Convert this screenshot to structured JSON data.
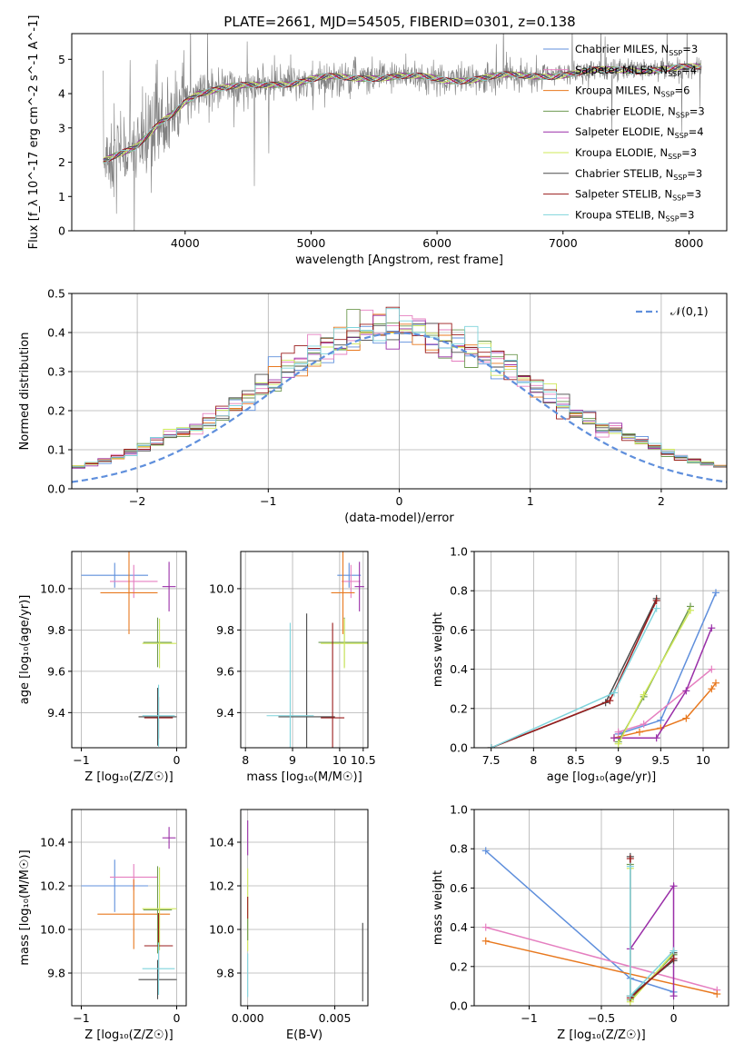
{
  "figure_title": "PLATE=2661, MJD=54505, FIBERID=0301, z=0.138",
  "colors": {
    "Chabrier MILES": "#5f8fdc",
    "Salpeter MILES": "#e57fc0",
    "Kroupa MILES": "#e8781e",
    "Chabrier ELODIE": "#6e9a50",
    "Salpeter ELODIE": "#9a2fa8",
    "Kroupa ELODIE": "#cfe85a",
    "Chabrier STELIB": "#4a4a4a",
    "Salpeter STELIB": "#9a1b1b",
    "Kroupa STELIB": "#7fd4dc",
    "normal": "#5f8fdc",
    "data": "#808080"
  },
  "chart_data": [
    {
      "id": "spectrum",
      "type": "line",
      "title": "PLATE=2661, MJD=54505, FIBERID=0301, z=0.138",
      "xlabel": "wavelength [Angstrom, rest frame]",
      "ylabel": "Flux [f_λ 10^-17 erg cm^-2 s^-1 A^-1]",
      "xlim": [
        3100,
        8300
      ],
      "ylim": [
        0,
        5.75
      ],
      "xticks": [
        4000,
        5000,
        6000,
        7000,
        8000
      ],
      "yticks": [
        0,
        1,
        2,
        3,
        4,
        5
      ],
      "grid": false,
      "legend_position": "right",
      "legend": [
        {
          "name": "Chabrier MILES",
          "nssp": "3"
        },
        {
          "name": "Salpeter MILES",
          "nssp": "4"
        },
        {
          "name": "Kroupa MILES",
          "nssp": "6"
        },
        {
          "name": "Chabrier ELODIE",
          "nssp": "3"
        },
        {
          "name": "Salpeter ELODIE",
          "nssp": "4"
        },
        {
          "name": "Kroupa ELODIE",
          "nssp": "3"
        },
        {
          "name": "Chabrier STELIB",
          "nssp": "3"
        },
        {
          "name": "Salpeter STELIB",
          "nssp": "3"
        },
        {
          "name": "Kroupa STELIB",
          "nssp": "3"
        }
      ],
      "continuum": {
        "x": [
          3350,
          3450,
          3600,
          3700,
          3800,
          3900,
          4000,
          4100,
          4300,
          4500,
          4700,
          4900,
          5100,
          5300,
          5500,
          5700,
          5900,
          6100,
          6300,
          6500,
          6700,
          6900,
          7100,
          7300,
          7500,
          7700,
          7900,
          8100
        ],
        "y": [
          2.1,
          2.25,
          2.4,
          2.7,
          3.1,
          3.4,
          3.8,
          4.05,
          4.15,
          4.2,
          4.3,
          4.35,
          4.45,
          4.45,
          4.5,
          4.5,
          4.45,
          4.4,
          4.45,
          4.5,
          4.5,
          4.55,
          4.6,
          4.65,
          4.7,
          4.72,
          4.72,
          4.75
        ]
      }
    },
    {
      "id": "residuals",
      "type": "line",
      "xlabel": "(data-model)/error",
      "ylabel": "Normed distribution",
      "xlim": [
        -2.5,
        2.5
      ],
      "ylim": [
        0,
        0.5
      ],
      "xticks": [
        -2,
        -1,
        0,
        1,
        2
      ],
      "yticks": [
        0.0,
        0.1,
        0.2,
        0.3,
        0.4,
        0.5
      ],
      "grid": true,
      "legend_position": "top-right",
      "legend": "𝒩(0,1)",
      "bin_width": 0.1
    },
    {
      "id": "age_vs_Z",
      "type": "scatter",
      "xlabel": "Z [log₁₀(Z/Z☉)]",
      "ylabel": "age [log₁₀(age/yr)]",
      "xlim": [
        -1.1,
        0.1
      ],
      "ylim": [
        9.23,
        10.18
      ],
      "xticks": [
        -1,
        0
      ],
      "yticks": [
        9.4,
        9.6,
        9.8,
        10.0
      ],
      "grid": true,
      "points": [
        {
          "model": "Chabrier MILES",
          "x": -0.65,
          "xerr": 0.35,
          "y": 10.065,
          "yerr": 0.06
        },
        {
          "model": "Salpeter MILES",
          "x": -0.45,
          "xerr": 0.25,
          "y": 10.035,
          "yerr": 0.08
        },
        {
          "model": "Kroupa MILES",
          "x": -0.5,
          "xerr": 0.3,
          "y": 9.98,
          "yerr": 0.2
        },
        {
          "model": "Salpeter ELODIE",
          "x": -0.08,
          "xerr": 0.07,
          "y": 10.01,
          "yerr": 0.12
        },
        {
          "model": "Chabrier ELODIE",
          "x": -0.2,
          "xerr": 0.15,
          "y": 9.74,
          "yerr": 0.12
        },
        {
          "model": "Kroupa ELODIE",
          "x": -0.18,
          "xerr": 0.18,
          "y": 9.735,
          "yerr": 0.12
        },
        {
          "model": "Chabrier STELIB",
          "x": -0.2,
          "xerr": 0.2,
          "y": 9.38,
          "yerr": 0.14
        },
        {
          "model": "Salpeter STELIB",
          "x": -0.19,
          "xerr": 0.15,
          "y": 9.375,
          "yerr": 0.1
        },
        {
          "model": "Kroupa STELIB",
          "x": -0.19,
          "xerr": 0.17,
          "y": 9.385,
          "yerr": 0.15
        }
      ]
    },
    {
      "id": "age_vs_mass",
      "type": "scatter",
      "xlabel": "mass [log₁₀(M/M☉)]",
      "ylabel": "",
      "xlim": [
        7.9,
        10.6
      ],
      "ylim": [
        9.23,
        10.18
      ],
      "xticks": [
        8.0,
        9.0,
        10.0,
        10.5
      ],
      "xticklabels": [
        "8",
        "9",
        "10",
        "10.5"
      ],
      "yticks": [
        9.4,
        9.6,
        9.8,
        10.0
      ],
      "grid": true,
      "points": [
        {
          "model": "Chabrier MILES",
          "x": 10.2,
          "xerr": 0.25,
          "y": 10.065,
          "yerr": 0.06
        },
        {
          "model": "Salpeter MILES",
          "x": 10.24,
          "xerr": 0.2,
          "y": 10.035,
          "yerr": 0.08
        },
        {
          "model": "Kroupa MILES",
          "x": 10.07,
          "xerr": 0.25,
          "y": 9.98,
          "yerr": 0.2
        },
        {
          "model": "Salpeter ELODIE",
          "x": 10.42,
          "xerr": 0.1,
          "y": 10.01,
          "yerr": 0.12
        },
        {
          "model": "Chabrier ELODIE",
          "x": 10.1,
          "xerr": 0.55,
          "y": 9.74,
          "yerr": 0.12
        },
        {
          "model": "Kroupa ELODIE",
          "x": 10.1,
          "xerr": 0.5,
          "y": 9.735,
          "yerr": 0.12
        },
        {
          "model": "Chabrier STELIB",
          "x": 9.3,
          "xerr": 0.6,
          "y": 9.38,
          "yerr": 0.5
        },
        {
          "model": "Salpeter STELIB",
          "x": 9.85,
          "xerr": 0.25,
          "y": 9.375,
          "yerr": 0.46
        },
        {
          "model": "Kroupa STELIB",
          "x": 8.95,
          "xerr": 0.5,
          "y": 9.385,
          "yerr": 0.45
        }
      ]
    },
    {
      "id": "massweight_vs_age",
      "type": "line",
      "xlabel": "age [log₁₀(age/yr)]",
      "ylabel": "mass weight",
      "xlim": [
        7.3,
        10.3
      ],
      "ylim": [
        0,
        1
      ],
      "xticks": [
        7.5,
        8.0,
        8.5,
        9.0,
        9.5,
        10.0
      ],
      "yticks": [
        0.0,
        0.2,
        0.4,
        0.6,
        0.8,
        1.0
      ],
      "grid": true,
      "series": [
        {
          "model": "Chabrier MILES",
          "x": [
            9.0,
            9.5,
            10.15
          ],
          "y": [
            0.07,
            0.14,
            0.79
          ]
        },
        {
          "model": "Salpeter MILES",
          "x": [
            9.0,
            9.3,
            10.1
          ],
          "y": [
            0.08,
            0.12,
            0.4
          ]
        },
        {
          "model": "Kroupa MILES",
          "x": [
            8.95,
            9.25,
            9.5,
            9.8,
            10.1,
            10.15
          ],
          "y": [
            0.05,
            0.08,
            0.1,
            0.15,
            0.3,
            0.33
          ]
        },
        {
          "model": "Chabrier ELODIE",
          "x": [
            9.0,
            9.3,
            9.85
          ],
          "y": [
            0.03,
            0.26,
            0.72
          ]
        },
        {
          "model": "Salpeter ELODIE",
          "x": [
            8.95,
            9.45,
            9.8,
            10.1
          ],
          "y": [
            0.05,
            0.05,
            0.29,
            0.61
          ]
        },
        {
          "model": "Kroupa ELODIE",
          "x": [
            9.0,
            9.3,
            9.85
          ],
          "y": [
            0.02,
            0.27,
            0.7
          ]
        },
        {
          "model": "Chabrier STELIB",
          "x": [
            7.5,
            8.85,
            9.45
          ],
          "y": [
            0.0,
            0.23,
            0.76
          ]
        },
        {
          "model": "Salpeter STELIB",
          "x": [
            7.5,
            8.9,
            9.45
          ],
          "y": [
            0.0,
            0.24,
            0.75
          ]
        },
        {
          "model": "Kroupa STELIB",
          "x": [
            7.5,
            8.95,
            9.45
          ],
          "y": [
            0.0,
            0.28,
            0.71
          ]
        }
      ]
    },
    {
      "id": "mass_vs_Z",
      "type": "scatter",
      "xlabel": "Z [log₁₀(Z/Z☉)]",
      "ylabel": "mass [log₁₀(M/M☉)]",
      "xlim": [
        -1.1,
        0.1
      ],
      "ylim": [
        9.65,
        10.55
      ],
      "xticks": [
        -1,
        0
      ],
      "yticks": [
        9.8,
        10.0,
        10.2,
        10.4
      ],
      "grid": true,
      "points": [
        {
          "model": "Chabrier MILES",
          "x": -0.65,
          "xerr": 0.35,
          "y": 10.2,
          "yerr": 0.12
        },
        {
          "model": "Salpeter MILES",
          "x": -0.45,
          "xerr": 0.25,
          "y": 10.24,
          "yerr": 0.06
        },
        {
          "model": "Kroupa MILES",
          "x": -0.45,
          "xerr": 0.38,
          "y": 10.07,
          "yerr": 0.16
        },
        {
          "model": "Salpeter ELODIE",
          "x": -0.08,
          "xerr": 0.07,
          "y": 10.42,
          "yerr": 0.05
        },
        {
          "model": "Chabrier ELODIE",
          "x": -0.2,
          "xerr": 0.15,
          "y": 10.09,
          "yerr": 0.2
        },
        {
          "model": "Kroupa ELODIE",
          "x": -0.18,
          "xerr": 0.18,
          "y": 10.095,
          "yerr": 0.19
        },
        {
          "model": "Chabrier STELIB",
          "x": -0.2,
          "xerr": 0.2,
          "y": 9.77,
          "yerr": 0.09
        },
        {
          "model": "Salpeter STELIB",
          "x": -0.19,
          "xerr": 0.15,
          "y": 9.925,
          "yerr": 0.15
        },
        {
          "model": "Kroupa STELIB",
          "x": -0.19,
          "xerr": 0.17,
          "y": 9.82,
          "yerr": 0.12
        }
      ]
    },
    {
      "id": "mass_vs_ebv",
      "type": "scatter",
      "xlabel": "E(B-V)",
      "ylabel": "",
      "xlim": [
        -0.0004,
        0.0069
      ],
      "ylim": [
        9.65,
        10.55
      ],
      "xticks": [
        0.0,
        0.005
      ],
      "xticklabels": [
        "0.000",
        "0.005"
      ],
      "yticks": [
        9.8,
        10.0,
        10.2,
        10.4
      ],
      "grid": true,
      "points": [
        {
          "model": "Salpeter ELODIE",
          "x": 0.0,
          "y": 10.42,
          "yerr": 0.08
        },
        {
          "model": "Kroupa ELODIE",
          "x": 0.0,
          "y": 10.09,
          "yerr": 0.19
        },
        {
          "model": "Salpeter STELIB",
          "x": 0.0,
          "y": 10.1,
          "yerr": 0.05
        },
        {
          "model": "Chabrier ELODIE",
          "x": 0.0,
          "y": 10.0,
          "yerr": 0.05
        },
        {
          "model": "Kroupa STELIB",
          "x": 0.0,
          "y": 9.79,
          "yerr": 0.1
        },
        {
          "model": "Chabrier STELIB",
          "x": 0.0066,
          "y": 9.85,
          "yerr": 0.18
        }
      ]
    },
    {
      "id": "massweight_vs_Z",
      "type": "line",
      "xlabel": "Z [log₁₀(Z/Z☉)]",
      "ylabel": "mass weight",
      "xlim": [
        -1.38,
        0.38
      ],
      "ylim": [
        0,
        1
      ],
      "xticks": [
        -1.0,
        -0.5,
        0.0
      ],
      "yticks": [
        0.0,
        0.2,
        0.4,
        0.6,
        0.8,
        1.0
      ],
      "grid": true,
      "series": [
        {
          "model": "Chabrier MILES",
          "x": [
            -1.3,
            -0.3,
            0.0
          ],
          "y": [
            0.79,
            0.14,
            0.07
          ]
        },
        {
          "model": "Salpeter MILES",
          "x": [
            -1.3,
            0.3
          ],
          "y": [
            0.4,
            0.08
          ]
        },
        {
          "model": "Kroupa MILES",
          "x": [
            -1.3,
            0.3
          ],
          "y": [
            0.33,
            0.06
          ]
        },
        {
          "model": "Chabrier ELODIE",
          "x": [
            -0.3,
            -0.3,
            0.0,
            0.0
          ],
          "y": [
            0.72,
            0.03,
            0.26,
            0.26
          ]
        },
        {
          "model": "Salpeter ELODIE",
          "x": [
            -0.3,
            0.0,
            0.0
          ],
          "y": [
            0.29,
            0.61,
            0.05
          ]
        },
        {
          "model": "Kroupa ELODIE",
          "x": [
            -0.3,
            -0.3,
            0.0
          ],
          "y": [
            0.7,
            0.02,
            0.27
          ]
        },
        {
          "model": "Chabrier STELIB",
          "x": [
            -0.3,
            -0.3,
            0.0,
            0.0
          ],
          "y": [
            0.76,
            0.05,
            0.23,
            0.27
          ]
        },
        {
          "model": "Salpeter STELIB",
          "x": [
            -0.3,
            -0.3,
            0.0
          ],
          "y": [
            0.75,
            0.04,
            0.24
          ]
        },
        {
          "model": "Kroupa STELIB",
          "x": [
            -0.3,
            -0.3,
            0.0
          ],
          "y": [
            0.71,
            0.05,
            0.28
          ]
        }
      ]
    }
  ]
}
